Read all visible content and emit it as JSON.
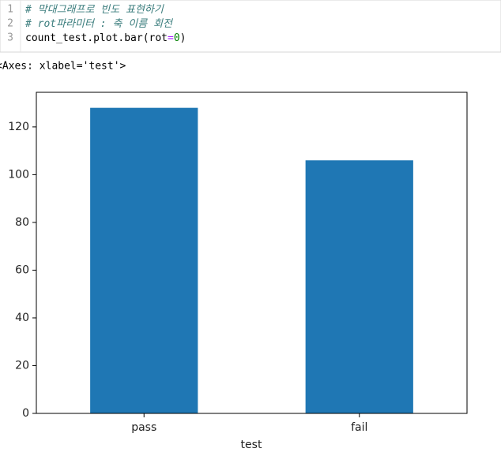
{
  "code": [
    {
      "number": "1",
      "tokens": [
        {
          "text": "# 막대그래프로 빈도 표현하기",
          "color": "#3b7d7d",
          "italic": true
        }
      ]
    },
    {
      "number": "2",
      "tokens": [
        {
          "text": "# rot파라미터 : 축 이름 회전",
          "color": "#3b7d7d",
          "italic": true
        }
      ]
    },
    {
      "number": "3",
      "tokens": [
        {
          "text": "count_test.plot.bar(rot",
          "color": "#000000",
          "italic": false
        },
        {
          "text": "=",
          "color": "#aa22ff",
          "italic": false
        },
        {
          "text": "0",
          "color": "#008000",
          "italic": false
        },
        {
          "text": ")",
          "color": "#000000",
          "italic": false
        }
      ]
    }
  ],
  "output_text": "<Axes: xlabel='test'>",
  "chart_data": {
    "type": "bar",
    "xlabel": "test",
    "categories": [
      "pass",
      "fail"
    ],
    "values": [
      128,
      106
    ],
    "color": "#1f77b4",
    "ylim": [
      0,
      134.5
    ],
    "yticks": [
      0,
      20,
      40,
      60,
      80,
      100,
      120
    ]
  }
}
